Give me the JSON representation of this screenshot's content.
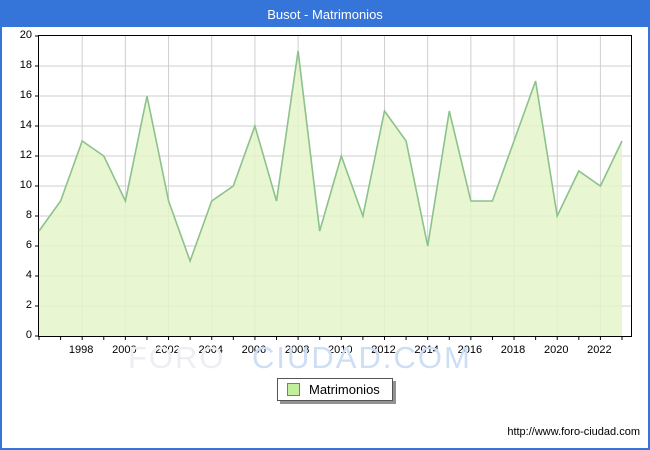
{
  "window": {
    "title": "Busot - Matrimonios"
  },
  "chart_data": {
    "type": "area",
    "title": "Busot - Matrimonios",
    "series_name": "Matrimonios",
    "x": [
      1996,
      1997,
      1998,
      1999,
      2000,
      2001,
      2002,
      2003,
      2004,
      2005,
      2006,
      2007,
      2008,
      2009,
      2010,
      2011,
      2012,
      2013,
      2014,
      2015,
      2016,
      2017,
      2018,
      2019,
      2020,
      2021,
      2022,
      2023
    ],
    "values": [
      7,
      9,
      13,
      12,
      9,
      16,
      9,
      5,
      9,
      10,
      14,
      9,
      19,
      7,
      12,
      8,
      15,
      13,
      6,
      15,
      9,
      9,
      13,
      17,
      8,
      11,
      10,
      13
    ],
    "ylim": [
      0,
      20
    ],
    "ytick_step": 2,
    "xticks": [
      1998,
      2000,
      2002,
      2004,
      2006,
      2008,
      2010,
      2012,
      2014,
      2016,
      2018,
      2020,
      2022
    ],
    "grid": true,
    "legend_position": "bottom-center"
  },
  "legend": {
    "label": "Matrimonios"
  },
  "watermark": {
    "part1": "FORO",
    "part2": "CIUDAD.COM"
  },
  "footer": {
    "url": "http://www.foro-ciudad.com"
  },
  "colors": {
    "accent": "#3574d8",
    "line": "#8cc28c",
    "fill": "#e4f5c9",
    "gridline": "#cfcfcf",
    "swatch": "#c3ee9b",
    "watermark_foro": "#ededf4",
    "watermark_ciudad": "#cddef5"
  }
}
